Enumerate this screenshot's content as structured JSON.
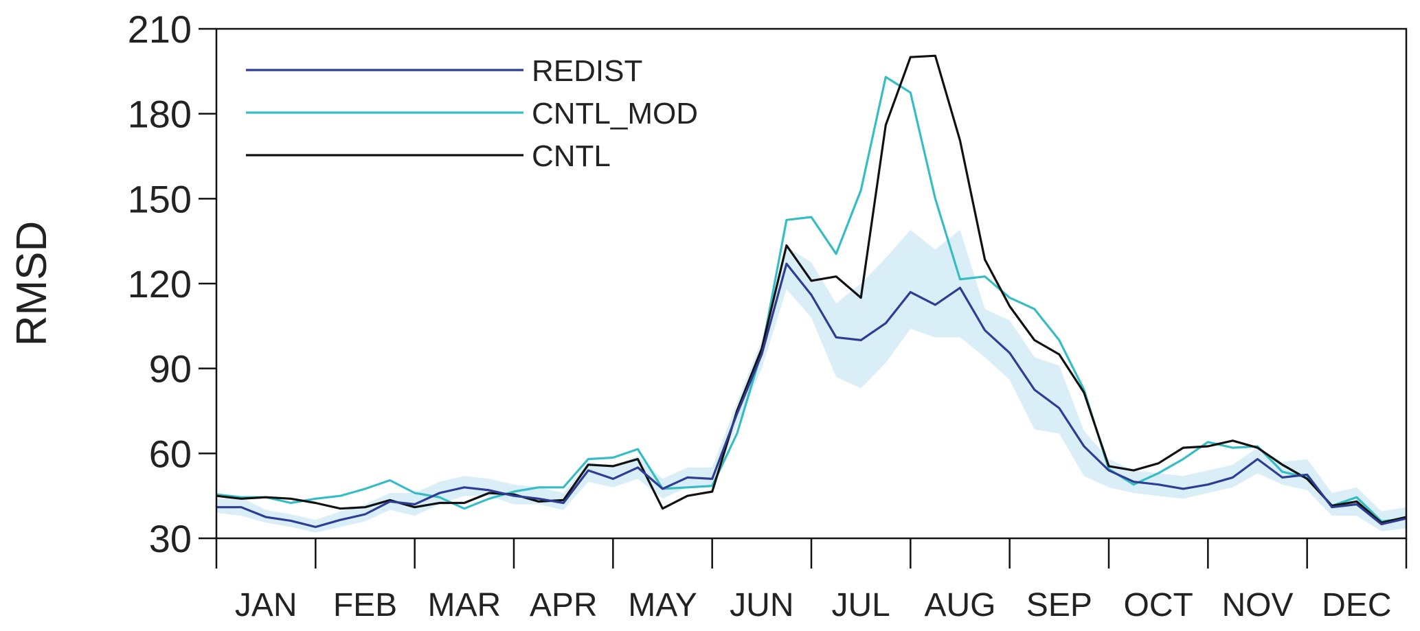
{
  "chart_data": {
    "type": "line",
    "title": "",
    "xlabel": "",
    "ylabel": "RMSD",
    "ylim": [
      30,
      210
    ],
    "yticks": [
      30,
      60,
      90,
      120,
      150,
      180,
      210
    ],
    "xlim": [
      1,
      49
    ],
    "months": [
      "JAN",
      "FEB",
      "MAR",
      "APR",
      "MAY",
      "JUN",
      "JUL",
      "AUG",
      "SEP",
      "OCT",
      "NOV",
      "DEC"
    ],
    "grid": false,
    "legend_position": "top-left",
    "x": [
      1,
      2,
      3,
      4,
      5,
      6,
      7,
      8,
      9,
      10,
      11,
      12,
      13,
      14,
      15,
      16,
      17,
      18,
      19,
      20,
      21,
      22,
      23,
      24,
      25,
      26,
      27,
      28,
      29,
      30,
      31,
      32,
      33,
      34,
      35,
      36,
      37,
      38,
      39,
      40,
      41,
      42,
      43,
      44,
      45,
      46,
      47,
      48,
      49
    ],
    "series": [
      {
        "name": "REDIST",
        "color": "#2e3d94",
        "values": [
          41,
          41,
          37.5,
          36.2,
          34,
          36.5,
          38.5,
          43,
          42,
          46,
          48,
          47,
          45,
          44,
          42.5,
          54,
          51,
          55,
          47.5,
          51.5,
          51,
          74,
          95,
          127,
          116,
          101,
          100,
          106,
          117,
          112.5,
          118.5,
          103.5,
          95.5,
          82.5,
          76,
          62.5,
          54,
          50,
          49,
          47.5,
          49,
          51.5,
          58,
          51.5,
          52.5,
          41,
          42,
          35,
          37
        ]
      },
      {
        "name": "CNTL_MOD",
        "color": "#36bdc4",
        "values": [
          45.5,
          44.5,
          44.5,
          42.5,
          44,
          45,
          47.5,
          50.5,
          46,
          44.5,
          40.5,
          44,
          46.5,
          48,
          48,
          58,
          58.5,
          61.5,
          47.5,
          48,
          48.5,
          67,
          96,
          142.5,
          143.5,
          130.5,
          153,
          193,
          187.5,
          150,
          121.5,
          122.5,
          115,
          111,
          100,
          82.5,
          54.5,
          49,
          53,
          58,
          64,
          62,
          62.5,
          53.5,
          51.5,
          41.5,
          44.5,
          36,
          37
        ]
      },
      {
        "name": "CNTL",
        "color": "#111111",
        "values": [
          45,
          44,
          44.5,
          44,
          42.5,
          40.5,
          41,
          43.5,
          41,
          42.5,
          42.5,
          46,
          45.5,
          43,
          43.5,
          56,
          55.5,
          58,
          40.5,
          45,
          46.5,
          75,
          97,
          133.5,
          121,
          122.5,
          115,
          176,
          200,
          200.5,
          170.5,
          128.5,
          112,
          100,
          95,
          81.5,
          55.5,
          54,
          56.5,
          62,
          62.5,
          64.5,
          62,
          56,
          51,
          41.5,
          43,
          35.5,
          37.5
        ]
      }
    ],
    "redist_spread": {
      "lower": [
        39,
        38,
        35.5,
        34,
        32,
        34,
        36,
        40,
        38,
        42,
        45,
        45,
        42,
        42,
        40,
        50,
        48,
        51,
        44,
        48,
        48,
        70,
        90,
        118,
        108,
        87,
        83,
        92,
        104,
        101,
        101,
        94,
        86,
        68.5,
        67,
        52,
        48,
        46,
        45,
        44,
        46,
        48,
        53,
        49,
        47,
        38,
        38,
        32.5,
        33.5
      ],
      "upper": [
        44,
        44.5,
        40,
        38.5,
        36.5,
        39.5,
        42,
        46,
        46,
        50,
        52,
        51,
        49,
        48,
        46,
        57,
        55.5,
        59,
        51,
        55,
        55,
        78,
        100,
        133,
        127.5,
        113,
        120,
        129,
        139,
        132,
        139,
        111,
        107,
        94,
        91,
        68,
        58,
        54,
        53,
        52,
        54,
        56,
        62,
        57,
        58,
        46,
        48,
        39.5,
        41
      ]
    }
  }
}
